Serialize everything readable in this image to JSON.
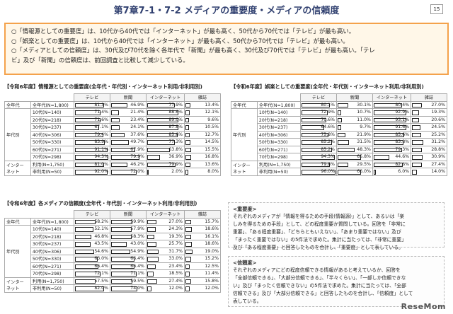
{
  "title": "第7章7-1・7-2 メディアの重要度・メディアの信頼度",
  "page": "15",
  "summary": [
    "○「情報源としての重要度」は、10代から40代では「インターネット」が最も高く、50代から70代では「テレビ」が最も高い。",
    "○「娯楽としての重要度」は、10代から40代では「インターネット」が最も高く、50代から70代では「テレビ」が最も高い。",
    "○「メディアとしての信頼度」は、30代及び70代を除く各年代で「新聞」が最も高く、30代及び70代では「テレビ」が最も高い。「テレ",
    "ビ」及び「新聞」の信頼度は、前回調査と比較して減少している。"
  ],
  "headers": [
    "テレビ",
    "新聞",
    "インターネット",
    "雑誌"
  ],
  "rowgroups": {
    "all": "全年代",
    "age": "年代別",
    "net": "インター\nネット"
  },
  "rows": [
    "全年代(N=1,800)",
    "10代(N=140)",
    "20代(N=218)",
    "30代(N=237)",
    "40代(N=306)",
    "50代(N=330)",
    "60代(N=271)",
    "70代(N=298)",
    "利用(N=1,750)",
    "非利用(N=50)"
  ],
  "tables": [
    {
      "title": "【令和6年度】情報源としての重要度(全年代・年代別・インターネット利用/非利用別)",
      "values": [
        [
          "81.3%",
          "46.9%",
          "77.9%",
          "13.4%"
        ],
        [
          "71.4%",
          "21.4%",
          "88.6%",
          "12.1%"
        ],
        [
          "71.6%",
          "23.4%",
          "89.0%",
          "9.6%"
        ],
        [
          "67.1%",
          "24.1%",
          "87.8%",
          "10.5%"
        ],
        [
          "79.4%",
          "37.6%",
          "85.6%",
          "12.7%"
        ],
        [
          "83.9%",
          "49.7%",
          "77.3%",
          "14.5%"
        ],
        [
          "91.1%",
          "67.9%",
          "63.8%",
          "15.5%"
        ],
        [
          "94.3%",
          "79.9%",
          "36.9%",
          "16.8%"
        ],
        [
          "81.0%",
          "46.2%",
          "79.9%",
          "13.6%"
        ],
        [
          "92.0%",
          "72.0%",
          "2.0%",
          "8.0%"
        ]
      ]
    },
    {
      "title": "【令和6年度】娯楽としての重要度(全年代・年代別・インターネット利用/非利用別)",
      "values": [
        [
          "80.1%",
          "30.1%",
          "80.4%",
          "27.0%"
        ],
        [
          "72.9%",
          "10.7%",
          "92.9%",
          "19.3%"
        ],
        [
          "70.6%",
          "11.0%",
          "93.1%",
          "20.6%"
        ],
        [
          "64.6%",
          "9.7%",
          "91.6%",
          "24.5%"
        ],
        [
          "75.8%",
          "21.9%",
          "85.6%",
          "25.2%"
        ],
        [
          "85.2%",
          "31.5%",
          "83.8%",
          "31.2%"
        ],
        [
          "85.2%",
          "48.3%",
          "79.3%",
          "28.8%"
        ],
        [
          "94.3%",
          "65.8%",
          "44.6%",
          "30.9%"
        ],
        [
          "79.8%",
          "29.5%",
          "82.6%",
          "27.4%"
        ],
        [
          "96.0%",
          "66.0%",
          "6.0%",
          "14.0%"
        ]
      ]
    },
    {
      "title": "【令和6年度】各メディアの信頼度(全年代・年代別・インターネット利用/非利用別)",
      "values": [
        [
          "58.2%",
          "59.9%",
          "27.0%",
          "15.7%"
        ],
        [
          "52.1%",
          "57.9%",
          "24.3%",
          "18.6%"
        ],
        [
          "46.8%",
          "58.3%",
          "19.3%",
          "16.1%"
        ],
        [
          "43.5%",
          "43.0%",
          "25.7%",
          "18.6%"
        ],
        [
          "54.6%",
          "54.9%",
          "31.7%",
          "19.0%"
        ],
        [
          "63.0%",
          "66.4%",
          "33.0%",
          "15.2%"
        ],
        [
          "66.4%",
          "66.4%",
          "23.4%",
          "12.5%"
        ],
        [
          "72.1%",
          "71.1%",
          "18.5%",
          "11.4%"
        ],
        [
          "57.5%",
          "59.5%",
          "27.4%",
          "15.8%"
        ],
        [
          "82.0%",
          "74.0%",
          "12.0%",
          "12.0%"
        ]
      ]
    }
  ],
  "notes": [
    {
      "heading": "<重要度>",
      "text": [
        "それぞれのメディアが「情報を得るための手段(情報源)」として、あるいは「楽",
        "しみを得るための手段」として、どの程度重要か質問している。回答を「非常に",
        "重要」、「ある程度重要」、「どちらともいえない」、「あまり重要ではない」及び",
        "「まったく重要ではない」の5件法で求めた。集計に当たっては、「非常に重要」",
        "及び「ある程度重要」と回答したものを合計し、「重要度」として表している。"
      ]
    },
    {
      "heading": "<信頼度>",
      "text": [
        "それぞれのメディアにどの程度信頼できる情報があると考えているか、回答を",
        "「全部信頼できる」、「大部分信頼できる」、「半々くらい」、「一部しか信頼できな",
        "い」及び「まったく信頼できない」の5件法で求めた。集計に当たっては、「全部",
        "信頼できる」及び「大部分信頼できる」と回答したものを合計し、「信頼度」として",
        "表している。"
      ]
    }
  ],
  "logo": "ReseMom"
}
